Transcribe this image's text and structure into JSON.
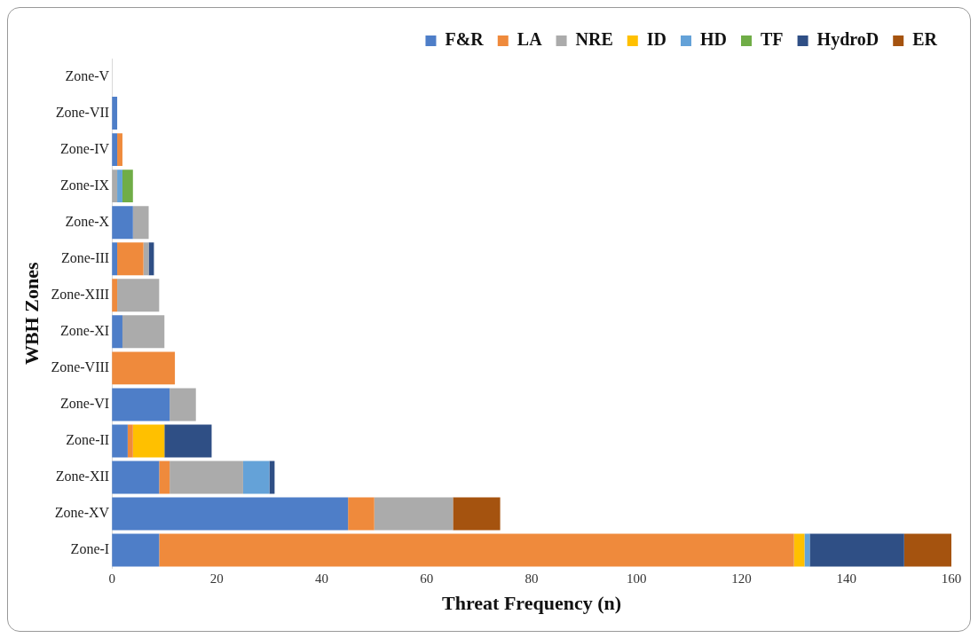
{
  "chart_data": {
    "type": "bar",
    "orientation": "horizontal",
    "stacked": true,
    "xlabel": "Threat Frequency (n)",
    "ylabel": "WBH Zones",
    "categories": [
      "Zone-V",
      "Zone-VII",
      "Zone-IV",
      "Zone-IX",
      "Zone-X",
      "Zone-III",
      "Zone-XIII",
      "Zone-XI",
      "Zone-VIII",
      "Zone-VI",
      "Zone-II",
      "Zone-XII",
      "Zone-XV",
      "Zone-I"
    ],
    "series": [
      {
        "name": "F&R",
        "color": "#4e7ec8",
        "values": [
          0,
          1,
          1,
          0,
          4,
          1,
          0,
          2,
          0,
          11,
          3,
          9,
          45,
          9
        ]
      },
      {
        "name": "LA",
        "color": "#ef8a3c",
        "values": [
          0,
          0,
          1,
          0,
          0,
          5,
          1,
          0,
          12,
          0,
          1,
          2,
          5,
          121
        ]
      },
      {
        "name": "NRE",
        "color": "#ababab",
        "values": [
          0,
          0,
          0,
          1,
          3,
          1,
          8,
          8,
          0,
          5,
          0,
          14,
          15,
          0
        ]
      },
      {
        "name": "ID",
        "color": "#ffc000",
        "values": [
          0,
          0,
          0,
          0,
          0,
          0,
          0,
          0,
          0,
          0,
          6,
          0,
          0,
          2
        ]
      },
      {
        "name": "HD",
        "color": "#64a2d8",
        "values": [
          0,
          0,
          0,
          1,
          0,
          0,
          0,
          0,
          0,
          0,
          0,
          5,
          0,
          1
        ]
      },
      {
        "name": "TF",
        "color": "#70ad47",
        "values": [
          0,
          0,
          0,
          2,
          0,
          0,
          0,
          0,
          0,
          0,
          0,
          0,
          0,
          0
        ]
      },
      {
        "name": "HydroD",
        "color": "#2f4f85",
        "values": [
          0,
          0,
          0,
          0,
          0,
          1,
          0,
          0,
          0,
          0,
          9,
          1,
          0,
          18
        ]
      },
      {
        "name": "ER",
        "color": "#a5530f",
        "values": [
          0,
          0,
          0,
          0,
          0,
          0,
          0,
          0,
          0,
          0,
          0,
          0,
          9,
          9
        ]
      }
    ],
    "xlim": [
      0,
      160
    ],
    "xticks": [
      0,
      20,
      40,
      60,
      80,
      100,
      120,
      140,
      160
    ],
    "grid": false,
    "legend": "top right"
  }
}
